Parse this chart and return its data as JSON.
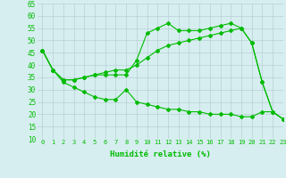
{
  "title": "",
  "xlabel": "Humidité relative (%)",
  "ylabel": "",
  "bg_color": "#d6eef0",
  "grid_color": "#b8d0d4",
  "line_color": "#00bb00",
  "xlim": [
    -0.5,
    23
  ],
  "ylim": [
    10,
    65
  ],
  "yticks": [
    10,
    15,
    20,
    25,
    30,
    35,
    40,
    45,
    50,
    55,
    60,
    65
  ],
  "xticks": [
    0,
    1,
    2,
    3,
    4,
    5,
    6,
    7,
    8,
    9,
    10,
    11,
    12,
    13,
    14,
    15,
    16,
    17,
    18,
    19,
    20,
    21,
    22,
    23
  ],
  "series": [
    {
      "x": [
        0,
        1,
        2,
        3,
        4,
        5,
        6,
        7,
        8,
        9,
        10,
        11,
        12,
        13,
        14,
        15,
        16,
        17,
        18,
        19,
        20,
        21,
        22,
        23
      ],
      "y": [
        46,
        38,
        34,
        34,
        35,
        36,
        36,
        36,
        36,
        42,
        53,
        55,
        57,
        54,
        54,
        54,
        55,
        56,
        57,
        55,
        49,
        33,
        21,
        18
      ]
    },
    {
      "x": [
        0,
        1,
        2,
        3,
        4,
        5,
        6,
        7,
        8,
        9,
        10,
        11,
        12,
        13,
        14,
        15,
        16,
        17,
        18,
        19,
        20,
        21,
        22,
        23
      ],
      "y": [
        46,
        38,
        34,
        34,
        35,
        36,
        37,
        38,
        38,
        40,
        43,
        46,
        48,
        49,
        50,
        51,
        52,
        53,
        54,
        55,
        49,
        33,
        21,
        18
      ]
    },
    {
      "x": [
        0,
        1,
        2,
        3,
        4,
        5,
        6,
        7,
        8,
        9,
        10,
        11,
        12,
        13,
        14,
        15,
        16,
        17,
        18,
        19,
        20,
        21,
        22,
        23
      ],
      "y": [
        46,
        38,
        33,
        31,
        29,
        27,
        26,
        26,
        30,
        25,
        24,
        23,
        22,
        22,
        21,
        21,
        20,
        20,
        20,
        19,
        19,
        21,
        21,
        18
      ]
    }
  ]
}
